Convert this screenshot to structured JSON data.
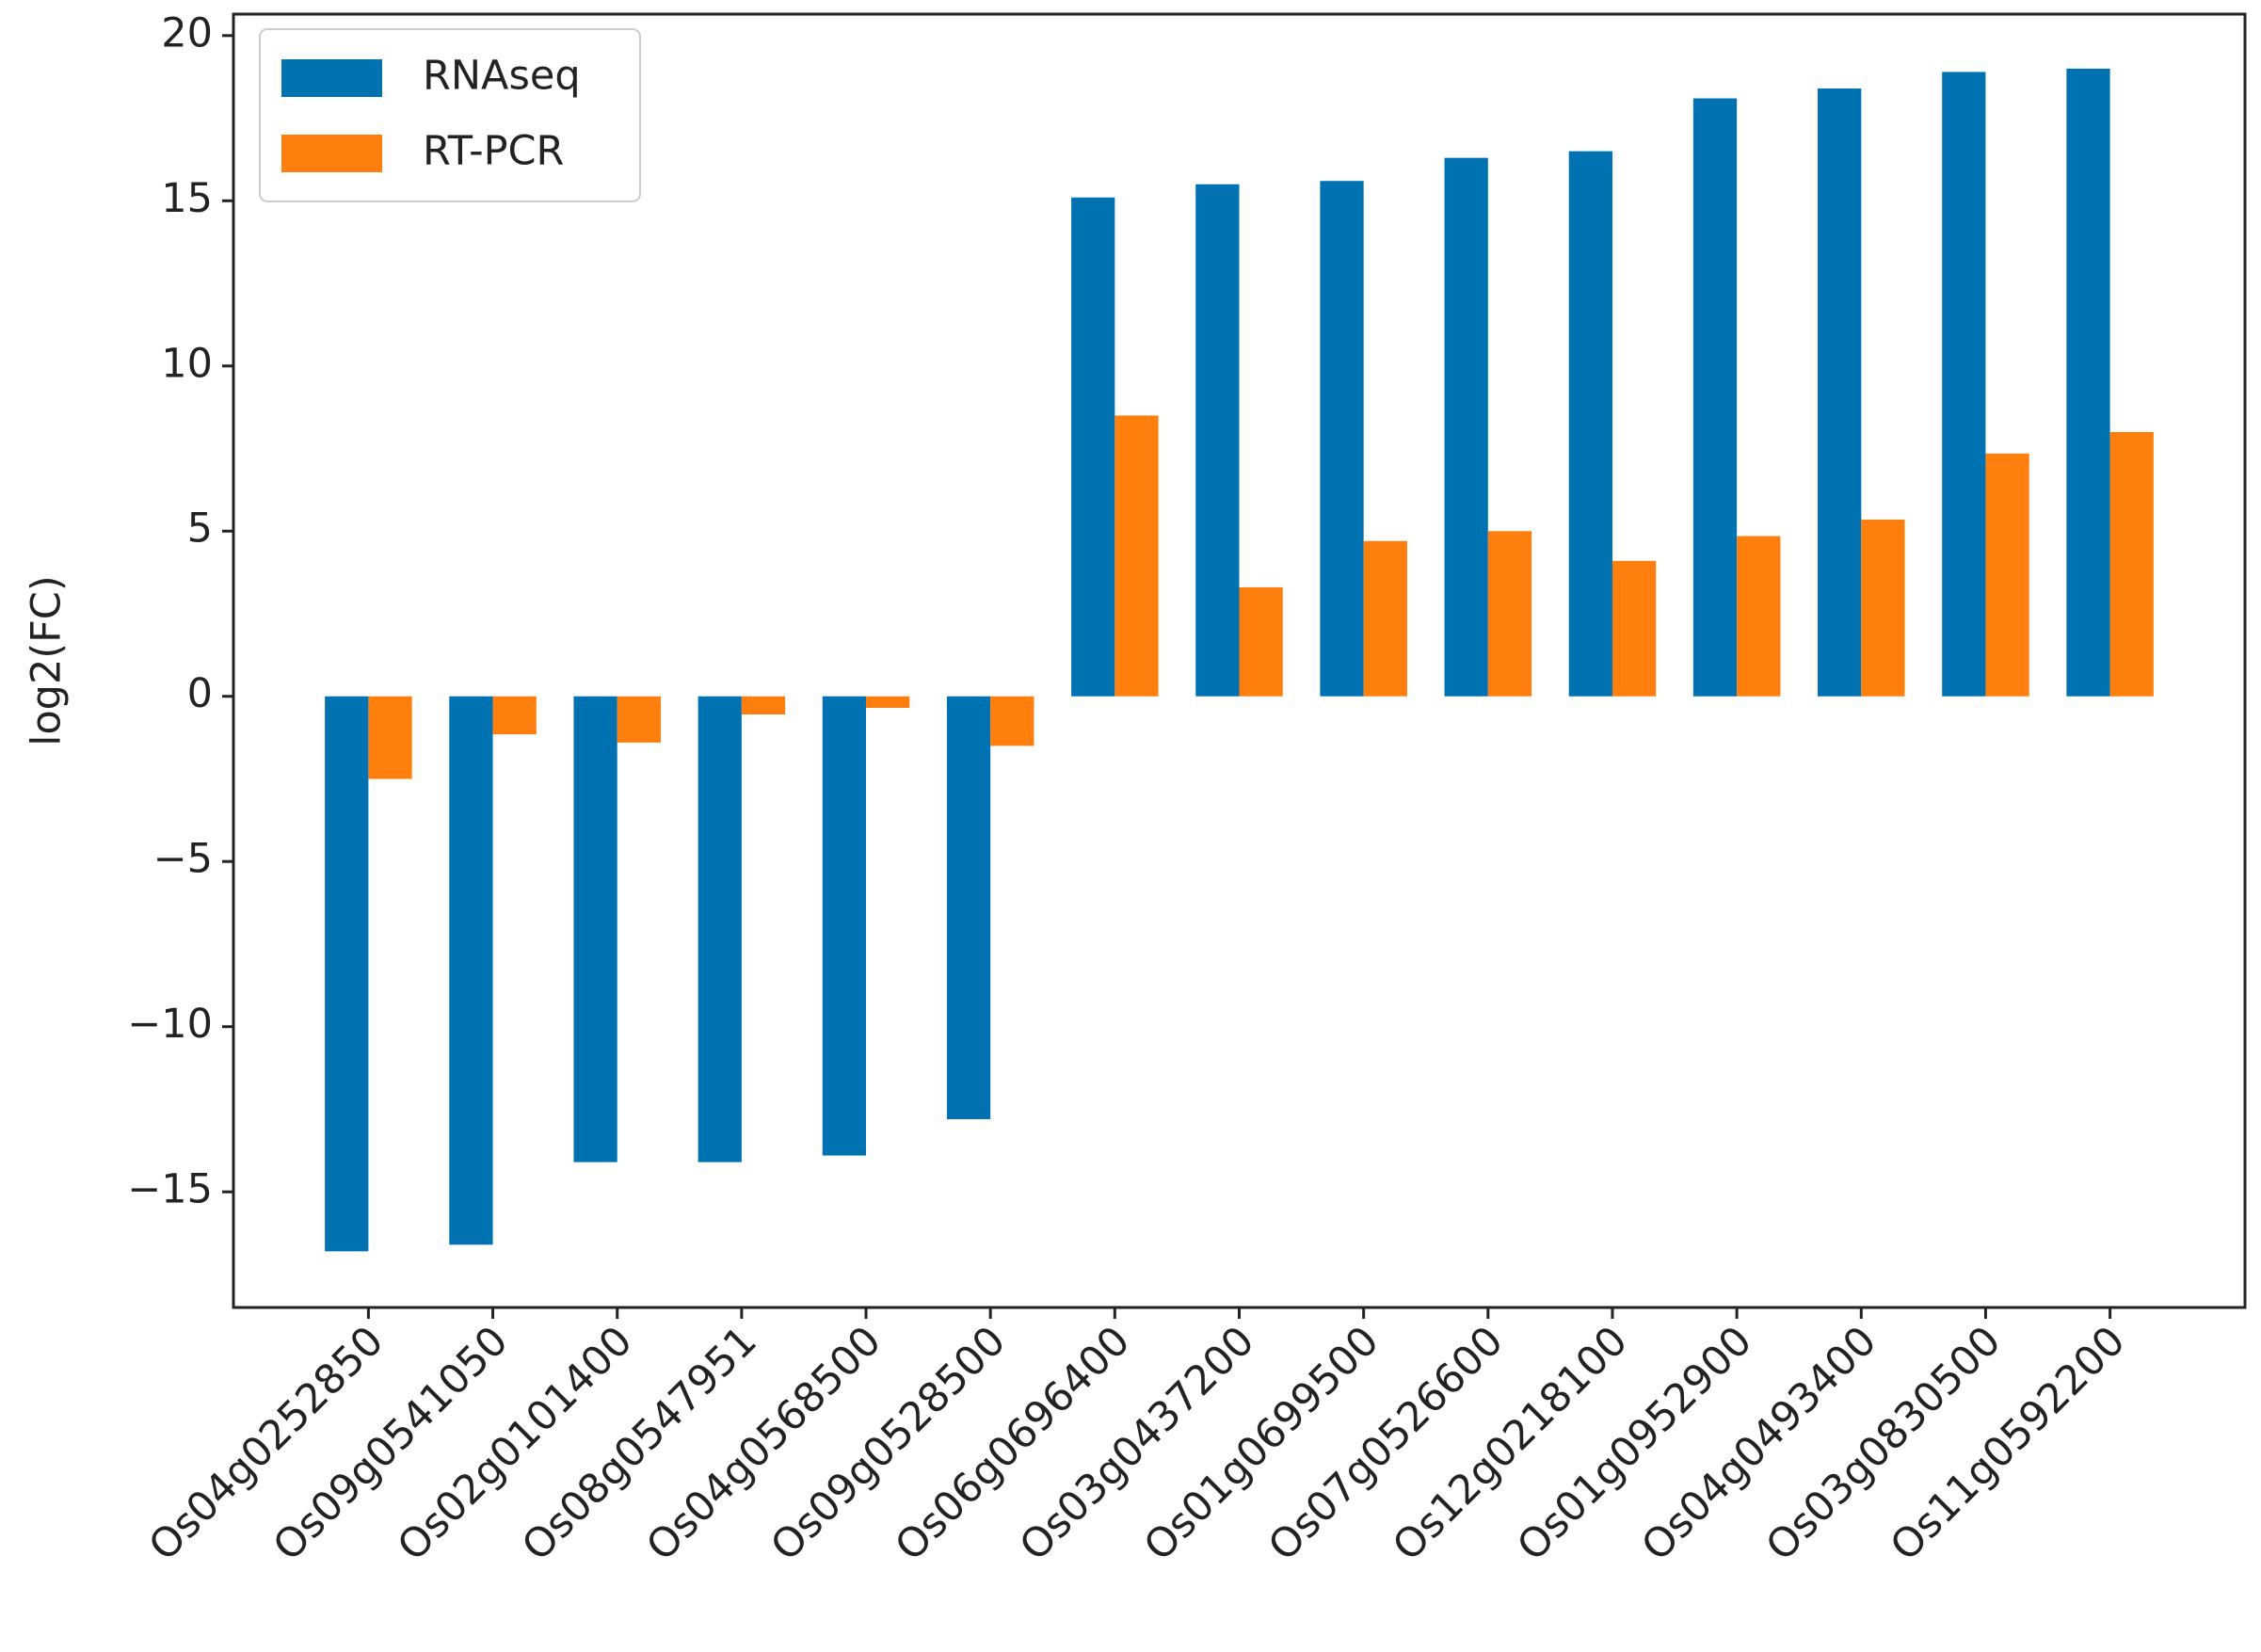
{
  "chart_data": {
    "type": "bar",
    "y_label": "log2(FC)",
    "categories": [
      "Os04g0252850",
      "Os09g0541050",
      "Os02g0101400",
      "Os08g0547951",
      "Os04g0568500",
      "Os09g0528500",
      "Os06g0696400",
      "Os03g0437200",
      "Os01g0699500",
      "Os07g0526600",
      "Os12g0218100",
      "Os01g0952900",
      "Os04g0493400",
      "Os03g0830500",
      "Os11g0592200"
    ],
    "series": [
      {
        "name": "RNAseq",
        "color": "#0072b2",
        "values": [
          -16.8,
          -16.6,
          -14.1,
          -14.1,
          -13.9,
          -12.8,
          15.1,
          15.5,
          15.6,
          16.3,
          16.5,
          18.1,
          18.4,
          18.9,
          19.0
        ]
      },
      {
        "name": "RT-PCR",
        "color": "#ff7f0e",
        "values": [
          -2.5,
          -1.15,
          -1.4,
          -0.55,
          -0.35,
          -1.5,
          8.5,
          3.3,
          4.7,
          5.0,
          4.1,
          4.85,
          5.35,
          7.35,
          8.0
        ]
      }
    ],
    "ylim": [
      -18.5,
      20.65
    ],
    "yticks": [
      {
        "value": -15,
        "label": "−15"
      },
      {
        "value": -10,
        "label": "−10"
      },
      {
        "value": -5,
        "label": "−5"
      },
      0,
      5,
      10,
      15,
      20
    ],
    "legend": "upper left",
    "grid": false
  }
}
